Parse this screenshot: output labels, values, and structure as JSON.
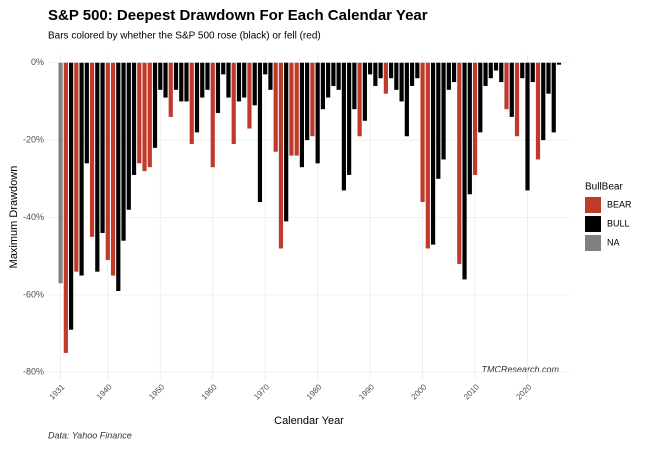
{
  "chart_data": {
    "type": "bar",
    "title": "S&P 500: Deepest Drawdown For Each Calendar Year",
    "subtitle": "Bars colored by whether the S&P 500 rose (black) or fell (red)",
    "x_label": "Calendar Year",
    "y_label": "Maximum Drawdown",
    "caption": "Data: Yahoo Finance",
    "watermark": "TMCResearch.com",
    "legend_title": "BullBear",
    "legend": [
      {
        "name": "BEAR",
        "color": "#c0392b"
      },
      {
        "name": "BULL",
        "color": "#000000"
      },
      {
        "name": "NA",
        "color": "#808080"
      }
    ],
    "x": [
      1931,
      1932,
      1933,
      1934,
      1935,
      1936,
      1937,
      1938,
      1939,
      1940,
      1941,
      1942,
      1943,
      1944,
      1945,
      1946,
      1947,
      1948,
      1949,
      1950,
      1951,
      1952,
      1953,
      1954,
      1955,
      1956,
      1957,
      1958,
      1959,
      1960,
      1961,
      1962,
      1963,
      1964,
      1965,
      1966,
      1967,
      1968,
      1969,
      1970,
      1971,
      1972,
      1973,
      1974,
      1975,
      1976,
      1977,
      1978,
      1979,
      1980,
      1981,
      1982,
      1983,
      1984,
      1985,
      1986,
      1987,
      1988,
      1989,
      1990,
      1991,
      1992,
      1993,
      1994,
      1995,
      1996,
      1997,
      1998,
      1999,
      2000,
      2001,
      2002,
      2003,
      2004,
      2005,
      2006,
      2007,
      2008,
      2009,
      2010,
      2011,
      2012,
      2013,
      2014,
      2015,
      2016,
      2017,
      2018,
      2019,
      2020,
      2021,
      2022,
      2023,
      2024,
      2025,
      2026
    ],
    "values": [
      -57,
      -75,
      -69,
      -54,
      -55,
      -26,
      -45,
      -54,
      -44,
      -51,
      -55,
      -59,
      -46,
      -38,
      -29,
      -26,
      -28,
      -27,
      -22,
      -7,
      -9,
      -14,
      -7,
      -10,
      -10,
      -21,
      -18,
      -9,
      -7,
      -27,
      -13,
      -3,
      -9,
      -21,
      -10,
      -9,
      -17,
      -11,
      -36,
      -3,
      -7,
      -23,
      -48,
      -41,
      -24,
      -24,
      -27,
      -20,
      -19,
      -26,
      -12,
      -9,
      -6,
      -7,
      -33,
      -29,
      -12,
      -19,
      -15,
      -3,
      -6,
      -4,
      -8,
      -4,
      -7,
      -10,
      -19,
      -6,
      -4,
      -36,
      -48,
      -47,
      -30,
      -25,
      -7,
      -5,
      -52,
      -56,
      -34,
      -29,
      -18,
      -6,
      -4,
      -2,
      -5,
      -12,
      -14,
      -19,
      -4,
      -33,
      -5,
      -25,
      -20,
      -8,
      -18,
      -0.5
    ],
    "colors": [
      "#808080",
      "#c0392b",
      "#000000",
      "#c0392b",
      "#000000",
      "#000000",
      "#c0392b",
      "#000000",
      "#000000",
      "#c0392b",
      "#c0392b",
      "#000000",
      "#000000",
      "#000000",
      "#000000",
      "#c0392b",
      "#c0392b",
      "#c0392b",
      "#000000",
      "#000000",
      "#000000",
      "#c0392b",
      "#000000",
      "#000000",
      "#000000",
      "#c0392b",
      "#000000",
      "#000000",
      "#000000",
      "#c0392b",
      "#000000",
      "#000000",
      "#000000",
      "#c0392b",
      "#000000",
      "#000000",
      "#c0392b",
      "#000000",
      "#000000",
      "#000000",
      "#000000",
      "#c0392b",
      "#c0392b",
      "#000000",
      "#c0392b",
      "#c0392b",
      "#000000",
      "#000000",
      "#c0392b",
      "#000000",
      "#000000",
      "#000000",
      "#000000",
      "#000000",
      "#000000",
      "#000000",
      "#000000",
      "#c0392b",
      "#000000",
      "#000000",
      "#000000",
      "#000000",
      "#c0392b",
      "#000000",
      "#000000",
      "#000000",
      "#000000",
      "#000000",
      "#000000",
      "#c0392b",
      "#c0392b",
      "#000000",
      "#000000",
      "#000000",
      "#000000",
      "#000000",
      "#c0392b",
      "#000000",
      "#000000",
      "#c0392b",
      "#000000",
      "#000000",
      "#000000",
      "#000000",
      "#000000",
      "#c0392b",
      "#000000",
      "#c0392b",
      "#000000",
      "#000000",
      "#000000",
      "#c0392b",
      "#000000",
      "#000000",
      "#000000",
      "#000000"
    ],
    "xlim": [
      1928.6,
      2028.1
    ],
    "xticks": [
      1931,
      1940,
      1950,
      1960,
      1970,
      1980,
      1990,
      2000,
      2010,
      2020
    ],
    "ylim": [
      -82,
      2
    ],
    "yticks": [
      {
        "value": 0,
        "label": "0%"
      },
      {
        "value": -20,
        "label": "-20%"
      },
      {
        "value": -40,
        "label": "-40%"
      },
      {
        "value": -60,
        "label": "-60%"
      },
      {
        "value": -80,
        "label": "-80%"
      }
    ],
    "grid": true
  }
}
